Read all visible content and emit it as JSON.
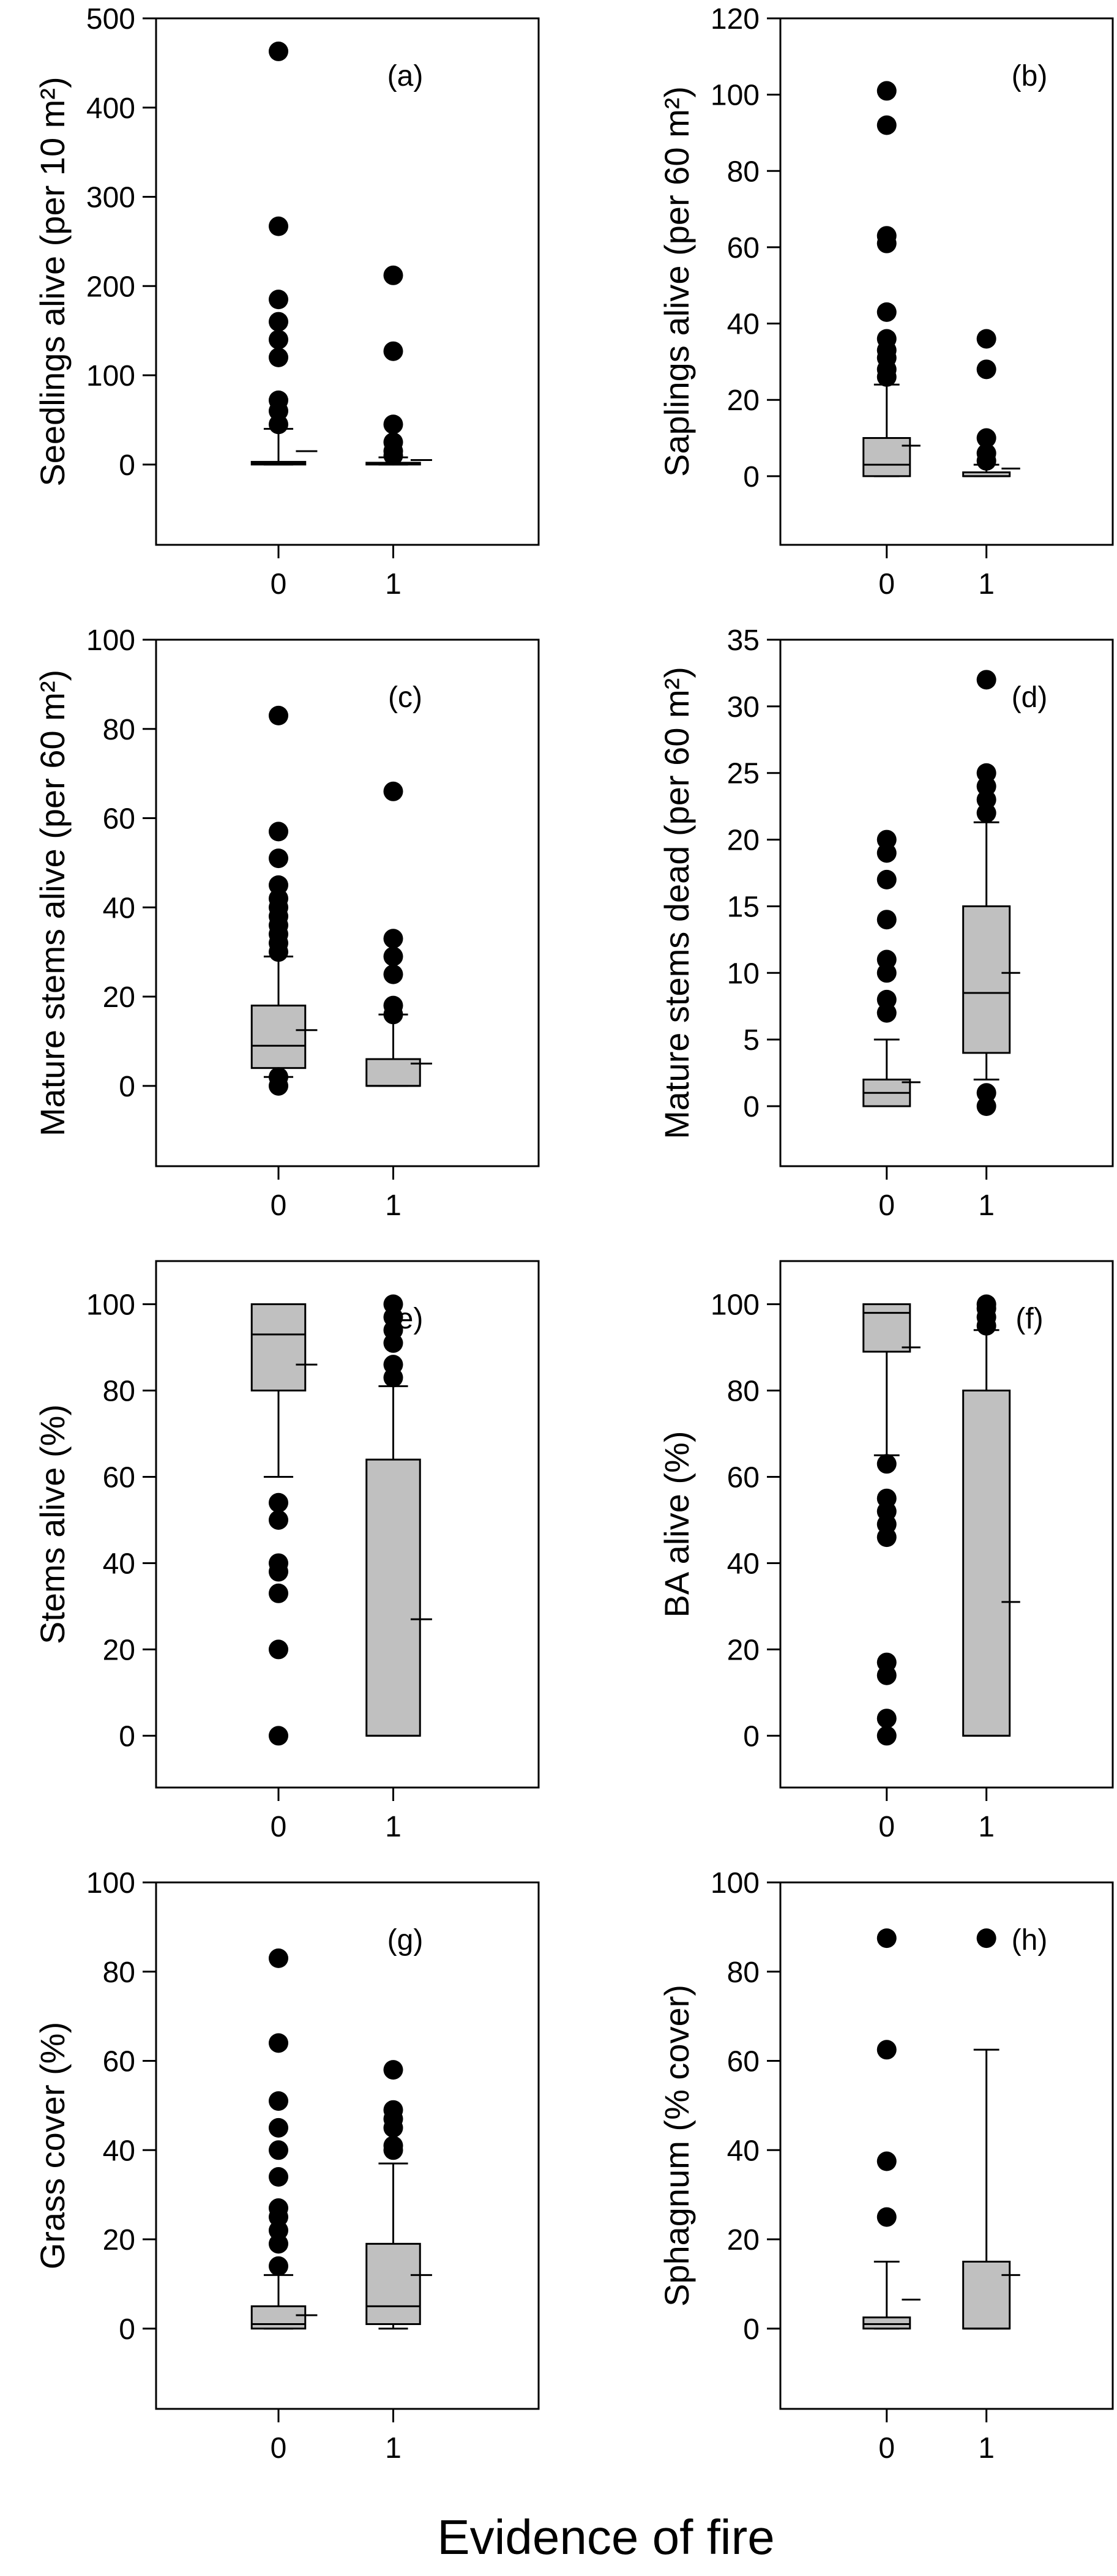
{
  "figure": {
    "xlabel": "Evidence of fire"
  },
  "chart_data": [
    {
      "type": "box",
      "panel": "(a)",
      "ylabel": "Seedlings alive (per 10 m²)",
      "ylim": [
        -90,
        500
      ],
      "yticks": [
        0,
        100,
        200,
        300,
        400,
        500
      ],
      "categories": [
        "0",
        "1"
      ],
      "groups": [
        {
          "category": "0",
          "q1": 0,
          "median": 1,
          "q3": 3,
          "whisker_low": 0,
          "whisker_high": 40,
          "mean": 15,
          "outliers": [
            463,
            267,
            185,
            160,
            140,
            120,
            72,
            60,
            45
          ]
        },
        {
          "category": "1",
          "q1": 0,
          "median": 1,
          "q3": 2,
          "whisker_low": 0,
          "whisker_high": 8,
          "mean": 5,
          "outliers": [
            212,
            127,
            45,
            25,
            15,
            10
          ]
        }
      ]
    },
    {
      "type": "box",
      "panel": "(b)",
      "ylabel": "Saplings alive (per 60 m²)",
      "ylim": [
        -18,
        120
      ],
      "yticks": [
        0,
        20,
        40,
        60,
        80,
        100,
        120
      ],
      "categories": [
        "0",
        "1"
      ],
      "groups": [
        {
          "category": "0",
          "q1": 0,
          "median": 3,
          "q3": 10,
          "whisker_low": 0,
          "whisker_high": 24,
          "mean": 8,
          "outliers": [
            101,
            92,
            63,
            61,
            43,
            36,
            33,
            31,
            28,
            26
          ]
        },
        {
          "category": "1",
          "q1": 0,
          "median": 0,
          "q3": 1,
          "whisker_low": 0,
          "whisker_high": 3,
          "mean": 2,
          "outliers": [
            36,
            28,
            10,
            6,
            4
          ]
        }
      ]
    },
    {
      "type": "box",
      "panel": "(c)",
      "ylabel": "Mature stems alive (per 60 m²)",
      "ylim": [
        -18,
        100
      ],
      "yticks": [
        0,
        20,
        40,
        60,
        80,
        100
      ],
      "categories": [
        "0",
        "1"
      ],
      "groups": [
        {
          "category": "0",
          "q1": 4,
          "median": 9,
          "q3": 18,
          "whisker_low": 2,
          "whisker_high": 29,
          "mean": 12.5,
          "outliers": [
            83,
            57,
            51,
            45,
            42,
            40,
            38,
            36,
            34,
            32,
            30,
            2,
            0
          ]
        },
        {
          "category": "1",
          "q1": 0,
          "median": 0,
          "q3": 6,
          "whisker_low": 0,
          "whisker_high": 16,
          "mean": 5,
          "outliers": [
            66,
            33,
            29,
            25,
            18,
            16
          ]
        }
      ]
    },
    {
      "type": "box",
      "panel": "(d)",
      "ylabel": "Mature stems dead (per 60 m²)",
      "ylim": [
        -4.5,
        35
      ],
      "yticks": [
        0,
        5,
        10,
        15,
        20,
        25,
        30,
        35
      ],
      "categories": [
        "0",
        "1"
      ],
      "groups": [
        {
          "category": "0",
          "q1": 0,
          "median": 1,
          "q3": 2,
          "whisker_low": 0,
          "whisker_high": 5,
          "mean": 1.8,
          "outliers": [
            20,
            19,
            17,
            14,
            11,
            10,
            8,
            7
          ]
        },
        {
          "category": "1",
          "q1": 4,
          "median": 8.5,
          "q3": 15,
          "whisker_low": 2,
          "whisker_high": 21.3,
          "mean": 10,
          "outliers": [
            32,
            25,
            24,
            23,
            22,
            1,
            0
          ]
        }
      ]
    },
    {
      "type": "box",
      "panel": "(e)",
      "ylabel": "Stems alive (%)",
      "ylim": [
        -12,
        110
      ],
      "yticks": [
        0,
        20,
        40,
        60,
        80,
        100
      ],
      "categories": [
        "0",
        "1"
      ],
      "groups": [
        {
          "category": "0",
          "q1": 80,
          "median": 93,
          "q3": 100,
          "whisker_low": 60,
          "whisker_high": 100,
          "mean": 86,
          "outliers": [
            54,
            50,
            40,
            38,
            33,
            20,
            0
          ]
        },
        {
          "category": "1",
          "q1": 0,
          "median": 0,
          "q3": 64,
          "whisker_low": 0,
          "whisker_high": 81,
          "mean": 27,
          "outliers": [
            100,
            97,
            94,
            91,
            86,
            83
          ]
        }
      ]
    },
    {
      "type": "box",
      "panel": "(f)",
      "ylabel": "BA alive (%)",
      "ylim": [
        -12,
        110
      ],
      "yticks": [
        0,
        20,
        40,
        60,
        80,
        100
      ],
      "categories": [
        "0",
        "1"
      ],
      "groups": [
        {
          "category": "0",
          "q1": 89,
          "median": 98,
          "q3": 100,
          "whisker_low": 65,
          "whisker_high": 100,
          "mean": 90,
          "outliers": [
            63,
            55,
            52,
            49,
            46,
            17,
            14,
            4,
            0
          ]
        },
        {
          "category": "1",
          "q1": 0,
          "median": 0,
          "q3": 80,
          "whisker_low": 0,
          "whisker_high": 94,
          "mean": 31,
          "outliers": [
            100,
            99,
            97,
            95
          ]
        }
      ]
    },
    {
      "type": "box",
      "panel": "(g)",
      "ylabel": "Grass cover (%)",
      "ylim": [
        -18,
        100
      ],
      "yticks": [
        0,
        20,
        40,
        60,
        80,
        100
      ],
      "categories": [
        "0",
        "1"
      ],
      "groups": [
        {
          "category": "0",
          "q1": 0,
          "median": 1,
          "q3": 5,
          "whisker_low": 0,
          "whisker_high": 12,
          "mean": 3,
          "outliers": [
            83,
            64,
            51,
            45,
            40,
            34,
            27,
            25,
            22,
            19,
            14
          ]
        },
        {
          "category": "1",
          "q1": 1,
          "median": 5,
          "q3": 19,
          "whisker_low": 0,
          "whisker_high": 37,
          "mean": 12,
          "outliers": [
            58,
            49,
            47,
            45,
            41,
            40
          ]
        }
      ]
    },
    {
      "type": "box",
      "panel": "(h)",
      "ylabel": "Sphagnum (% cover)",
      "ylim": [
        -18,
        100
      ],
      "yticks": [
        0,
        20,
        40,
        60,
        80,
        100
      ],
      "categories": [
        "0",
        "1"
      ],
      "groups": [
        {
          "category": "0",
          "q1": 0,
          "median": 1,
          "q3": 2.5,
          "whisker_low": 0,
          "whisker_high": 15,
          "mean": 6.5,
          "outliers": [
            87.5,
            62.5,
            37.5,
            25
          ]
        },
        {
          "category": "1",
          "q1": 0,
          "median": 0,
          "q3": 15,
          "whisker_low": 0,
          "whisker_high": 62.5,
          "mean": 12,
          "outliers": [
            87.5
          ]
        }
      ]
    }
  ]
}
